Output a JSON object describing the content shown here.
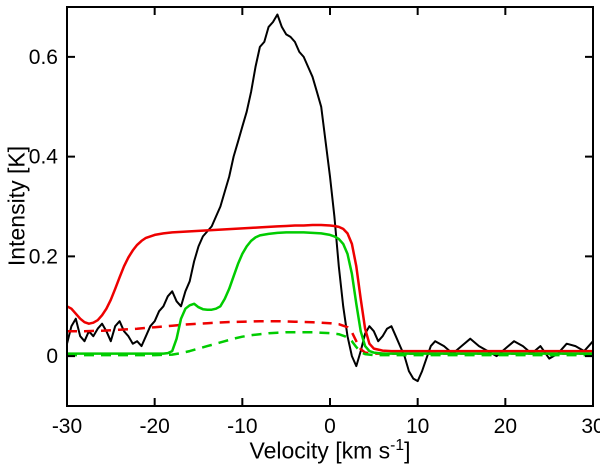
{
  "figure": {
    "background": "#ffffff"
  },
  "labels": {
    "xlabel_pre": "Velocity [km s",
    "xlabel_sup": "-1",
    "xlabel_post": "]",
    "ylabel": "Intensity [K]"
  },
  "chart_data": {
    "type": "line",
    "title": "",
    "xlabel": "Velocity [km s^-1]",
    "ylabel": "Intensity [K]",
    "xlim": [
      -30,
      30
    ],
    "ylim": [
      -0.1,
      0.7
    ],
    "xticks": [
      -30,
      -20,
      -10,
      0,
      10,
      20,
      30
    ],
    "yticks": [
      0,
      0.2,
      0.4,
      0.6
    ],
    "grid": false,
    "legend": "none",
    "axis_color": "#000000",
    "series": [
      {
        "name": "observed-black",
        "color": "#000000",
        "style": "solid",
        "width": 2,
        "x": [
          -30,
          -29.5,
          -29,
          -28.5,
          -28,
          -27.5,
          -27,
          -26.5,
          -26,
          -25.5,
          -25,
          -24.5,
          -24,
          -23.5,
          -23,
          -22.5,
          -22,
          -21.5,
          -21,
          -20.5,
          -20,
          -19.5,
          -19,
          -18.5,
          -18,
          -17.5,
          -17,
          -16.5,
          -16,
          -15.5,
          -15,
          -14.5,
          -14,
          -13.5,
          -13,
          -12.5,
          -12,
          -11.5,
          -11,
          -10.5,
          -10,
          -9.5,
          -9,
          -8.5,
          -8,
          -7.5,
          -7,
          -6.5,
          -6,
          -5.5,
          -5,
          -4.5,
          -4,
          -3.5,
          -3,
          -2.5,
          -2,
          -1.5,
          -1,
          -0.5,
          0,
          0.5,
          1,
          1.5,
          2,
          2.5,
          3,
          3.5,
          4,
          4.5,
          5,
          5.5,
          6,
          6.5,
          7,
          7.5,
          8,
          8.5,
          9,
          9.5,
          10,
          10.5,
          11,
          11.5,
          12,
          13,
          14,
          15,
          16,
          17,
          18,
          19,
          20,
          21,
          22,
          23,
          24,
          25,
          26,
          27,
          28,
          29,
          30
        ],
        "y": [
          0.025,
          0.06,
          0.075,
          0.04,
          0.03,
          0.05,
          0.04,
          0.055,
          0.065,
          0.05,
          0.03,
          0.06,
          0.07,
          0.05,
          0.04,
          0.025,
          0.03,
          0.02,
          0.04,
          0.06,
          0.07,
          0.09,
          0.1,
          0.12,
          0.13,
          0.11,
          0.1,
          0.13,
          0.15,
          0.19,
          0.22,
          0.24,
          0.25,
          0.26,
          0.28,
          0.3,
          0.33,
          0.36,
          0.4,
          0.43,
          0.46,
          0.49,
          0.53,
          0.58,
          0.62,
          0.63,
          0.66,
          0.67,
          0.685,
          0.66,
          0.645,
          0.64,
          0.63,
          0.61,
          0.6,
          0.58,
          0.56,
          0.53,
          0.5,
          0.43,
          0.36,
          0.28,
          0.18,
          0.1,
          0.04,
          0.0,
          -0.02,
          0.01,
          0.045,
          0.06,
          0.05,
          0.03,
          0.04,
          0.055,
          0.06,
          0.04,
          0.02,
          0.0,
          -0.03,
          -0.045,
          -0.05,
          -0.03,
          -0.005,
          0.02,
          0.03,
          0.02,
          0.005,
          0.02,
          0.035,
          0.02,
          0.01,
          0.0,
          0.015,
          0.03,
          0.02,
          0.005,
          0.02,
          -0.005,
          0.005,
          0.025,
          0.02,
          0.01,
          0.03
        ]
      },
      {
        "name": "model-red-dashed",
        "color": "#ee0000",
        "style": "dashed",
        "width": 2.5,
        "x": [
          -30,
          -28,
          -26,
          -24,
          -22,
          -20,
          -18,
          -16,
          -14,
          -12,
          -10,
          -8,
          -6,
          -4,
          -2,
          0,
          1,
          2,
          2.5,
          3,
          3.5,
          4,
          5,
          7,
          10,
          15,
          20,
          25,
          30
        ],
        "y": [
          0.05,
          0.05,
          0.051,
          0.053,
          0.055,
          0.058,
          0.061,
          0.064,
          0.066,
          0.068,
          0.069,
          0.07,
          0.07,
          0.069,
          0.068,
          0.066,
          0.064,
          0.058,
          0.048,
          0.03,
          0.014,
          0.007,
          0.005,
          0.005,
          0.005,
          0.005,
          0.005,
          0.005,
          0.005
        ]
      },
      {
        "name": "model-green-dashed",
        "color": "#00cc00",
        "style": "dashed",
        "width": 2.5,
        "x": [
          -30,
          -25,
          -20,
          -18,
          -17,
          -16,
          -15,
          -14,
          -13,
          -12,
          -11,
          -10,
          -9,
          -8,
          -7,
          -6,
          -5,
          -4,
          -3,
          -2,
          -1,
          0,
          1,
          2,
          2.5,
          3,
          3.5,
          4,
          5,
          7,
          10,
          15,
          20,
          25,
          30
        ],
        "y": [
          0.002,
          0.002,
          0.002,
          0.003,
          0.006,
          0.01,
          0.015,
          0.02,
          0.025,
          0.03,
          0.035,
          0.039,
          0.042,
          0.044,
          0.046,
          0.047,
          0.048,
          0.048,
          0.048,
          0.048,
          0.047,
          0.046,
          0.044,
          0.038,
          0.03,
          0.018,
          0.008,
          0.004,
          0.002,
          0.002,
          0.002,
          0.002,
          0.002,
          0.002,
          0.002
        ]
      },
      {
        "name": "model-red-solid",
        "color": "#ee0000",
        "style": "solid",
        "width": 2.5,
        "x": [
          -30,
          -29.5,
          -29,
          -28.5,
          -28,
          -27.5,
          -27,
          -26.5,
          -26,
          -25.5,
          -25,
          -24.5,
          -24,
          -23.5,
          -23,
          -22.5,
          -22,
          -21.5,
          -21,
          -20,
          -19,
          -18,
          -17,
          -16,
          -15,
          -14,
          -13,
          -12,
          -11,
          -10,
          -9,
          -8,
          -7,
          -6,
          -5,
          -4,
          -3,
          -2,
          -1,
          0,
          0.5,
          1,
          1.5,
          2,
          2.5,
          3,
          3.5,
          4,
          4.5,
          5,
          6,
          7,
          8,
          10,
          12,
          15,
          20,
          25,
          30
        ],
        "y": [
          0.1,
          0.095,
          0.085,
          0.075,
          0.068,
          0.065,
          0.067,
          0.072,
          0.082,
          0.095,
          0.113,
          0.135,
          0.158,
          0.18,
          0.198,
          0.212,
          0.223,
          0.231,
          0.237,
          0.243,
          0.246,
          0.248,
          0.249,
          0.25,
          0.251,
          0.252,
          0.253,
          0.254,
          0.255,
          0.256,
          0.257,
          0.258,
          0.259,
          0.26,
          0.261,
          0.262,
          0.262,
          0.263,
          0.263,
          0.262,
          0.261,
          0.259,
          0.255,
          0.246,
          0.225,
          0.18,
          0.115,
          0.055,
          0.025,
          0.015,
          0.011,
          0.01,
          0.01,
          0.01,
          0.01,
          0.01,
          0.01,
          0.01,
          0.01
        ]
      },
      {
        "name": "model-green-solid",
        "color": "#00cc00",
        "style": "solid",
        "width": 2.5,
        "x": [
          -30,
          -28,
          -26,
          -24,
          -22,
          -20,
          -19,
          -18.5,
          -18,
          -17.5,
          -17,
          -16.5,
          -16,
          -15.5,
          -15,
          -14.5,
          -14,
          -13.5,
          -13,
          -12.5,
          -12,
          -11.5,
          -11,
          -10.5,
          -10,
          -9.5,
          -9,
          -8.5,
          -8,
          -7,
          -6,
          -5,
          -4,
          -3,
          -2,
          -1,
          0,
          0.5,
          1,
          1.5,
          2,
          2.5,
          3,
          3.5,
          4,
          4.5,
          5,
          6,
          8,
          10,
          15,
          20,
          25,
          30
        ],
        "y": [
          0.005,
          0.005,
          0.005,
          0.005,
          0.005,
          0.005,
          0.005,
          0.006,
          0.01,
          0.035,
          0.075,
          0.095,
          0.102,
          0.105,
          0.098,
          0.094,
          0.093,
          0.093,
          0.095,
          0.1,
          0.115,
          0.135,
          0.16,
          0.185,
          0.205,
          0.22,
          0.231,
          0.238,
          0.242,
          0.245,
          0.247,
          0.248,
          0.248,
          0.248,
          0.247,
          0.246,
          0.243,
          0.24,
          0.235,
          0.225,
          0.205,
          0.165,
          0.105,
          0.05,
          0.02,
          0.01,
          0.007,
          0.005,
          0.005,
          0.005,
          0.005,
          0.005,
          0.005,
          0.005
        ]
      }
    ]
  }
}
